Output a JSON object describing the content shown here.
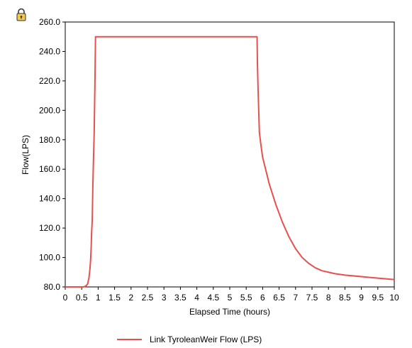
{
  "chart_data": {
    "type": "line",
    "title": "",
    "xlabel": "Elapsed Time (hours)",
    "ylabel": "Flow(LPS)",
    "xlim": [
      0,
      10
    ],
    "ylim": [
      80,
      260
    ],
    "x_ticks": [
      "0",
      "0.5",
      "1",
      "1.5",
      "2",
      "2.5",
      "3",
      "3.5",
      "4",
      "4.5",
      "5",
      "5.5",
      "6",
      "6.5",
      "7",
      "7.5",
      "8",
      "8.5",
      "9",
      "9.5",
      "10"
    ],
    "y_ticks": [
      "80.0",
      "100.0",
      "120.0",
      "140.0",
      "160.0",
      "180.0",
      "200.0",
      "220.0",
      "240.0",
      "260.0"
    ],
    "grid": false,
    "legend_position": "bottom-center",
    "series": [
      {
        "name": "Link TyroleanWeir Flow (LPS)",
        "color": "#e8504f",
        "x": [
          0,
          0.55,
          0.62,
          0.68,
          0.72,
          0.75,
          0.77,
          0.79,
          0.8,
          0.82,
          0.84,
          0.86,
          0.88,
          0.9,
          0.92,
          5.83,
          5.84,
          5.86,
          5.88,
          5.9,
          5.95,
          6.0,
          6.1,
          6.2,
          6.4,
          6.6,
          6.8,
          7.0,
          7.2,
          7.4,
          7.6,
          7.8,
          8.0,
          8.2,
          8.5,
          9.0,
          9.5,
          10.0
        ],
        "y": [
          80,
          80,
          80.5,
          82,
          86,
          92,
          98,
          108,
          116,
          125,
          150,
          168,
          185,
          215,
          250,
          250,
          233,
          215,
          200,
          185,
          176,
          168,
          159,
          150,
          136,
          124,
          114,
          106,
          100,
          96,
          93,
          91,
          90,
          89,
          88,
          87,
          86,
          85
        ]
      }
    ]
  },
  "icons": {
    "lock": "lock-icon"
  }
}
